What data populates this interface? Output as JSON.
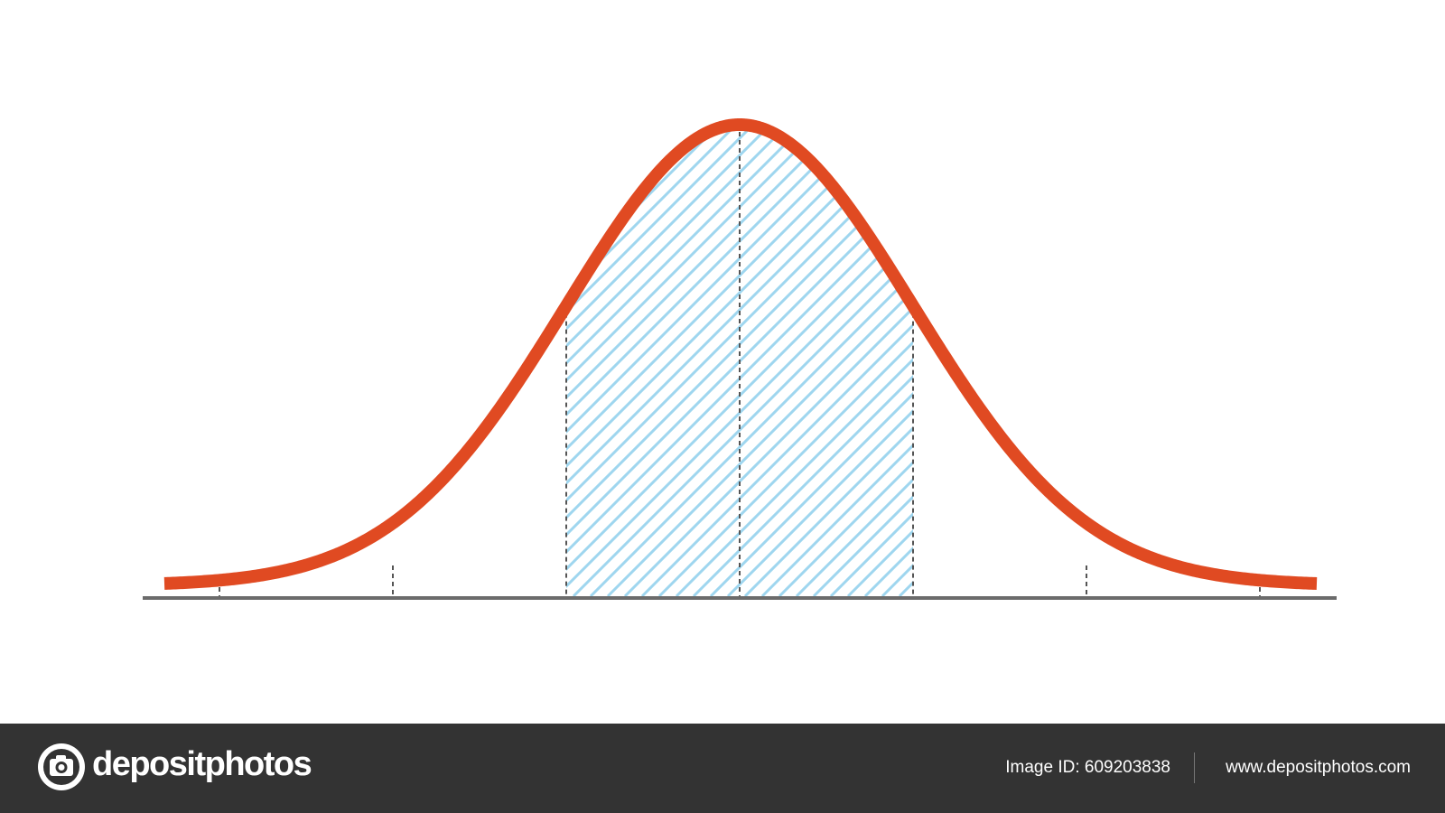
{
  "footer": {
    "brand": "depositphotos",
    "image_id": "Image ID: 609203838",
    "website": "www.depositphotos.com"
  }
}
